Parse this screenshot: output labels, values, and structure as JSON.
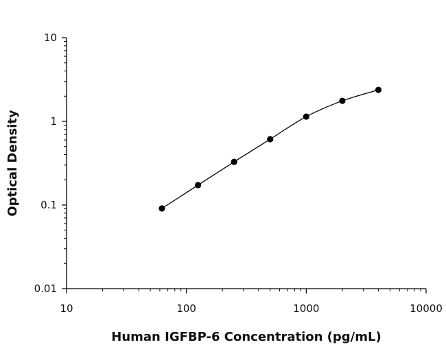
{
  "chart_data": {
    "type": "scatter",
    "title": "",
    "xlabel": "Human IGFBP-6 Concentration (pg/mL)",
    "ylabel": "Optical Density",
    "x_scale": "log",
    "y_scale": "log",
    "xlim": [
      10,
      10000
    ],
    "ylim": [
      0.01,
      10
    ],
    "x_ticks": [
      "10",
      "100",
      "1000",
      "10000"
    ],
    "y_ticks": [
      "0.01",
      "0.1",
      "1",
      "10"
    ],
    "grid": false,
    "fit_line": true,
    "colors": {
      "points": "#000000",
      "line": "#000000"
    },
    "series": [
      {
        "x": [
          62.5,
          125,
          250,
          500,
          1000,
          2000,
          4000
        ],
        "y": [
          0.091,
          0.173,
          0.328,
          0.612,
          1.14,
          1.76,
          2.38
        ]
      }
    ]
  }
}
